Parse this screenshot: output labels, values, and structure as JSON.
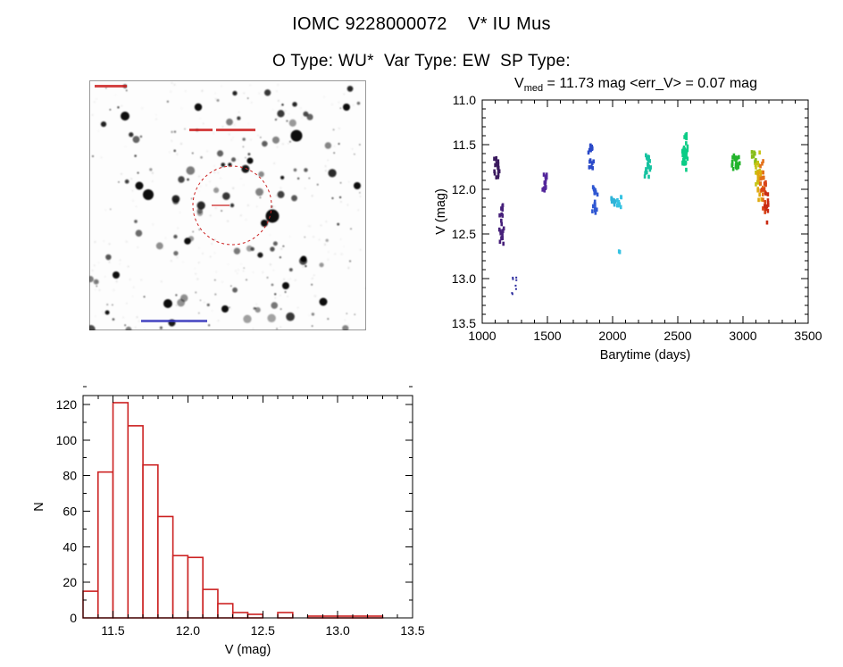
{
  "page": {
    "title": "IOMC 9228000072    V* IU Mus",
    "subtitle": "O Type: WU*  Var Type: EW  SP Type:"
  },
  "scatter_title": {
    "var": "V",
    "sub": "med",
    "rest": " = 11.73 mag <err_V> = 0.07 mag"
  },
  "finder_chart": {
    "circle_color": "#cc2222",
    "annotation_red": "#cc2222",
    "annotation_blue": "#3333bb"
  },
  "chart_data": [
    {
      "type": "scatter",
      "title": "V_med = 11.73 mag <err_V> = 0.07 mag",
      "xlabel": "Barytime (days)",
      "ylabel": "V (mag)",
      "xlim": [
        1000,
        3500
      ],
      "ylim": [
        11.0,
        13.5
      ],
      "y_inverted": true,
      "xticks": [
        1000,
        1500,
        2000,
        2500,
        3000,
        3500
      ],
      "yticks": [
        11.0,
        11.5,
        12.0,
        12.5,
        13.0,
        13.5
      ],
      "x_minor_step": 100,
      "y_minor_step": 0.1,
      "clusters": [
        {
          "x": 1108,
          "ymin": 11.63,
          "ymax": 11.87,
          "n": 12,
          "color": "#3b1a5e"
        },
        {
          "x": 1118,
          "ymin": 11.7,
          "ymax": 11.8,
          "n": 6,
          "color": "#3b1a5e"
        },
        {
          "x": 1148,
          "ymin": 12.15,
          "ymax": 12.62,
          "n": 14,
          "color": "#46207a"
        },
        {
          "x": 1152,
          "ymin": 12.3,
          "ymax": 12.55,
          "n": 6,
          "color": "#46207a"
        },
        {
          "x": 1245,
          "ymin": 12.88,
          "ymax": 13.3,
          "n": 6,
          "color": "#2c2c9e",
          "small": true
        },
        {
          "x": 1255,
          "ymin": 13.05,
          "ymax": 13.12,
          "n": 2,
          "color": "#2c2c9e",
          "small": true
        },
        {
          "x": 1480,
          "ymin": 11.82,
          "ymax": 12.02,
          "n": 10,
          "color": "#53279b"
        },
        {
          "x": 1488,
          "ymin": 11.85,
          "ymax": 11.95,
          "n": 5,
          "color": "#53279b"
        },
        {
          "x": 1828,
          "ymin": 11.5,
          "ymax": 11.62,
          "n": 9,
          "color": "#2a49c8"
        },
        {
          "x": 1838,
          "ymin": 11.64,
          "ymax": 11.8,
          "n": 8,
          "color": "#2a49c8"
        },
        {
          "x": 1862,
          "ymin": 11.95,
          "ymax": 12.3,
          "n": 12,
          "color": "#2f57d2"
        },
        {
          "x": 1870,
          "ymin": 12.0,
          "ymax": 12.15,
          "n": 5,
          "color": "#2f57d2"
        },
        {
          "x": 2008,
          "ymin": 12.05,
          "ymax": 12.18,
          "n": 9,
          "color": "#2fb3d8"
        },
        {
          "x": 2052,
          "ymin": 12.08,
          "ymax": 12.2,
          "n": 9,
          "color": "#35c2e2"
        },
        {
          "x": 2058,
          "ymin": 12.68,
          "ymax": 12.72,
          "n": 2,
          "color": "#35c2e2"
        },
        {
          "x": 2262,
          "ymin": 11.6,
          "ymax": 11.86,
          "n": 14,
          "color": "#15c2a0"
        },
        {
          "x": 2276,
          "ymin": 11.63,
          "ymax": 11.8,
          "n": 8,
          "color": "#15c2a0"
        },
        {
          "x": 2552,
          "ymin": 11.38,
          "ymax": 11.82,
          "n": 26,
          "color": "#0bcc86"
        },
        {
          "x": 2562,
          "ymin": 11.5,
          "ymax": 11.72,
          "n": 10,
          "color": "#0bcc86"
        },
        {
          "x": 2932,
          "ymin": 11.62,
          "ymax": 11.82,
          "n": 12,
          "color": "#23b42c"
        },
        {
          "x": 2958,
          "ymin": 11.6,
          "ymax": 11.78,
          "n": 10,
          "color": "#23b42c"
        },
        {
          "x": 3085,
          "ymin": 11.56,
          "ymax": 11.72,
          "n": 10,
          "color": "#86bd18"
        },
        {
          "x": 3112,
          "ymin": 11.58,
          "ymax": 11.95,
          "n": 16,
          "color": "#c6c312"
        },
        {
          "x": 3128,
          "ymin": 11.8,
          "ymax": 12.12,
          "n": 12,
          "color": "#dfa90d"
        },
        {
          "x": 3148,
          "ymin": 11.68,
          "ymax": 12.18,
          "n": 16,
          "color": "#e2711b"
        },
        {
          "x": 3163,
          "ymin": 11.92,
          "ymax": 12.28,
          "n": 12,
          "color": "#d84518"
        },
        {
          "x": 3178,
          "ymin": 12.02,
          "ymax": 12.38,
          "n": 10,
          "color": "#c92a12"
        }
      ]
    },
    {
      "type": "bar",
      "style": "step-outline-histogram",
      "color": "#cc2222",
      "xlabel": "V (mag)",
      "ylabel": "N",
      "bin_start": 11.3,
      "bin_width": 0.1,
      "values": [
        15,
        82,
        121,
        108,
        86,
        57,
        35,
        34,
        16,
        8,
        3,
        2,
        0,
        3,
        0,
        1,
        1,
        1,
        1,
        1
      ],
      "xlim": [
        11.3,
        13.5
      ],
      "ylim": [
        0,
        125
      ],
      "xticks": [
        11.5,
        12.0,
        12.5,
        13.0,
        13.5
      ],
      "yticks": [
        0,
        20,
        40,
        60,
        80,
        100,
        120
      ],
      "x_minor_step": 0.1,
      "y_minor_step": 10
    }
  ]
}
